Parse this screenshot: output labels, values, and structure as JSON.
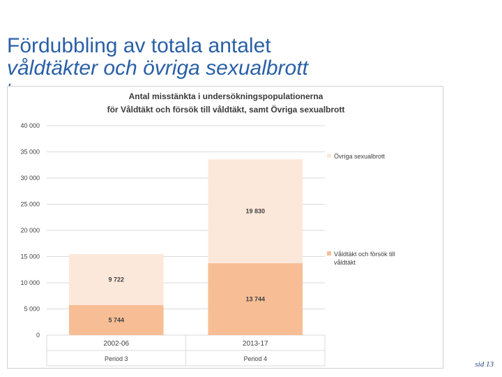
{
  "slide": {
    "title_line1": "Fördubbling av totala antalet",
    "title_line2": "våldtäkter och övriga sexualbrott",
    "title_line3": "t",
    "page_number": "sid 13"
  },
  "colors": {
    "title": "#2a5fa6",
    "series_bottom": "#f7be95",
    "series_top": "#fce8da",
    "grid": "#d9d9d9",
    "text": "#404040"
  },
  "chart_data": {
    "type": "bar",
    "stacked": true,
    "title_line1": "Antal misstänkta i undersökningspopulationerna",
    "title_line2": "för Våldtäkt och försök till våldtäkt, samt Övriga sexualbrott",
    "categories": [
      "2002-06",
      "2013-17"
    ],
    "category_sublabels": [
      "Period 3",
      "Period 4"
    ],
    "series": [
      {
        "name": "Våldtäkt och försök till våldtäkt",
        "values": [
          5744,
          13744
        ],
        "labels": [
          "5 744",
          "13 744"
        ],
        "color": "#f7be95"
      },
      {
        "name": "Övriga sexualbrott",
        "values": [
          9722,
          19830
        ],
        "labels": [
          "9 722",
          "19 830"
        ],
        "color": "#fce8da"
      }
    ],
    "ylim": [
      0,
      40000
    ],
    "yticks": [
      0,
      5000,
      10000,
      15000,
      20000,
      25000,
      30000,
      35000,
      40000
    ],
    "ytick_labels": [
      "0",
      "5 000",
      "10 000",
      "15 000",
      "20 000",
      "25 000",
      "30 000",
      "35 000",
      "40 000"
    ],
    "grid": true,
    "legend_position": "right",
    "legend": [
      "Övriga sexualbrott",
      "Våldtäkt och försök till våldtäkt"
    ],
    "xlabel": "",
    "ylabel": ""
  }
}
